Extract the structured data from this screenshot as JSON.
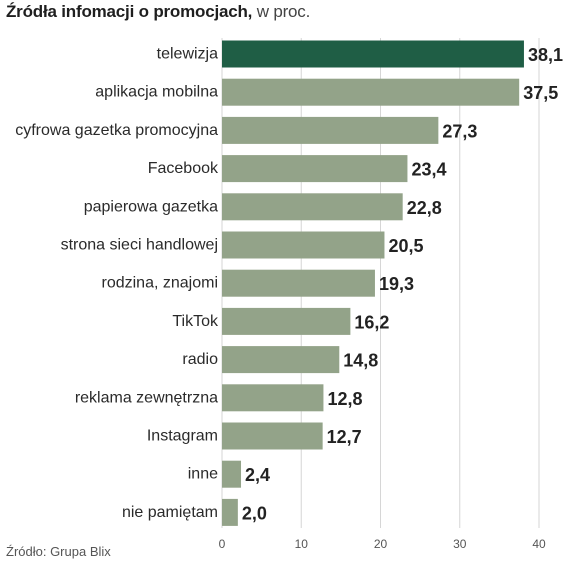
{
  "header": {
    "title": "Źródła infomacji o promocjach,",
    "unit": " w proc."
  },
  "footer": {
    "source": "Źródło: Grupa Blix"
  },
  "colors": {
    "highlight_bar": "#1f5e45",
    "bar": "#93a389",
    "grid": "#d6d6d6"
  },
  "chart_data": {
    "type": "bar",
    "orientation": "horizontal",
    "title": "Źródła infomacji o promocjach, w proc.",
    "categories": [
      "telewizja",
      "aplikacja mobilna",
      "cyfrowa gazetka promocyjna",
      "Facebook",
      "papierowa gazetka",
      "strona sieci handlowej",
      "rodzina, znajomi",
      "TikTok",
      "radio",
      "reklama zewnętrzna",
      "Instagram",
      "inne",
      "nie pamiętam"
    ],
    "values": [
      38.1,
      37.5,
      27.3,
      23.4,
      22.8,
      20.5,
      19.3,
      16.2,
      14.8,
      12.8,
      12.7,
      2.4,
      2.0
    ],
    "value_labels": [
      "38,1",
      "37,5",
      "27,3",
      "23,4",
      "22,8",
      "20,5",
      "19,3",
      "16,2",
      "14,8",
      "12,8",
      "12,7",
      "2,4",
      "2,0"
    ],
    "highlight_index": 0,
    "xlim": [
      0,
      40
    ],
    "xticks": [
      0,
      10,
      20,
      30,
      40
    ],
    "xtick_labels": [
      "0",
      "10",
      "20",
      "30",
      "40"
    ],
    "grid": true,
    "legend": "none"
  }
}
